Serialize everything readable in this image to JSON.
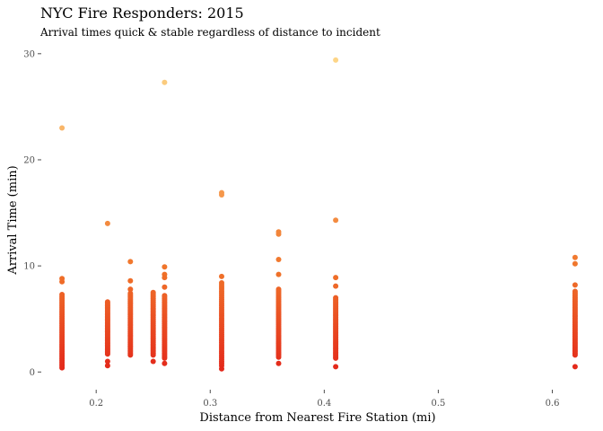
{
  "chart_data": {
    "type": "scatter",
    "title": "NYC Fire Responders: 2015",
    "subtitle": "Arrival times quick & stable regardless of distance to incident",
    "xlabel": "Distance from Nearest Fire Station (mi)",
    "ylabel": "Arrival Time (min)",
    "xlim": [
      0.155,
      0.635
    ],
    "ylim": [
      -1.5,
      31
    ],
    "x_ticks": [
      0.2,
      0.3,
      0.4,
      0.5,
      0.6
    ],
    "x_tick_labels": [
      "0.2",
      "0.3",
      "0.4",
      "0.5",
      "0.6"
    ],
    "y_ticks": [
      0,
      10,
      20,
      30
    ],
    "y_tick_labels": [
      "0",
      "10",
      "20",
      "30"
    ],
    "grid": false,
    "legend": "none",
    "color_scale": {
      "low": "#e3261a",
      "mid": "#f0742a",
      "high": "#fdd88a",
      "domain": [
        0,
        30
      ]
    },
    "clusters": [
      {
        "x": 0.17,
        "y_min": 0.4,
        "y_max": 7.3
      },
      {
        "x": 0.21,
        "y_min": 1.7,
        "y_max": 6.6
      },
      {
        "x": 0.23,
        "y_min": 1.6,
        "y_max": 7.4
      },
      {
        "x": 0.25,
        "y_min": 1.6,
        "y_max": 7.5
      },
      {
        "x": 0.26,
        "y_min": 1.3,
        "y_max": 7.2
      },
      {
        "x": 0.31,
        "y_min": 0.6,
        "y_max": 8.4
      },
      {
        "x": 0.36,
        "y_min": 1.4,
        "y_max": 7.8
      },
      {
        "x": 0.41,
        "y_min": 1.3,
        "y_max": 7.0
      },
      {
        "x": 0.62,
        "y_min": 1.6,
        "y_max": 7.6
      }
    ],
    "points": [
      {
        "x": 0.17,
        "y": 23.0
      },
      {
        "x": 0.17,
        "y": 8.8
      },
      {
        "x": 0.17,
        "y": 8.5
      },
      {
        "x": 0.21,
        "y": 14.0
      },
      {
        "x": 0.21,
        "y": 1.0
      },
      {
        "x": 0.21,
        "y": 0.6
      },
      {
        "x": 0.23,
        "y": 10.4
      },
      {
        "x": 0.23,
        "y": 8.6
      },
      {
        "x": 0.23,
        "y": 7.8
      },
      {
        "x": 0.25,
        "y": 1.0
      },
      {
        "x": 0.26,
        "y": 27.3
      },
      {
        "x": 0.26,
        "y": 9.9
      },
      {
        "x": 0.26,
        "y": 9.2
      },
      {
        "x": 0.26,
        "y": 8.9
      },
      {
        "x": 0.26,
        "y": 8.0
      },
      {
        "x": 0.26,
        "y": 0.8
      },
      {
        "x": 0.31,
        "y": 16.9
      },
      {
        "x": 0.31,
        "y": 16.7
      },
      {
        "x": 0.31,
        "y": 9.0
      },
      {
        "x": 0.31,
        "y": 0.3
      },
      {
        "x": 0.36,
        "y": 13.2
      },
      {
        "x": 0.36,
        "y": 13.0
      },
      {
        "x": 0.36,
        "y": 10.6
      },
      {
        "x": 0.36,
        "y": 9.2
      },
      {
        "x": 0.36,
        "y": 0.8
      },
      {
        "x": 0.41,
        "y": 29.4
      },
      {
        "x": 0.41,
        "y": 14.3
      },
      {
        "x": 0.41,
        "y": 8.9
      },
      {
        "x": 0.41,
        "y": 8.1
      },
      {
        "x": 0.41,
        "y": 0.5
      },
      {
        "x": 0.62,
        "y": 10.8
      },
      {
        "x": 0.62,
        "y": 10.2
      },
      {
        "x": 0.62,
        "y": 8.2
      },
      {
        "x": 0.62,
        "y": 0.5
      }
    ]
  }
}
